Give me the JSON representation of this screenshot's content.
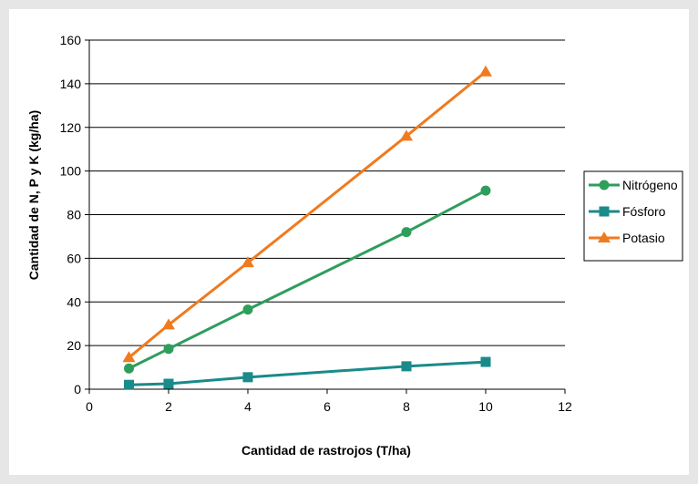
{
  "chart_data": {
    "type": "line",
    "xlabel": "Cantidad de rastrojos (T/ha)",
    "ylabel": "Cantidad de N, P y K (kg/ha)",
    "xlim": [
      0,
      12
    ],
    "ylim": [
      0,
      160
    ],
    "xticks": [
      "0",
      "2",
      "4",
      "6",
      "8",
      "10",
      "12"
    ],
    "yticks": [
      "0",
      "20",
      "40",
      "60",
      "80",
      "100",
      "120",
      "140",
      "160"
    ],
    "grid": "horizontal",
    "legend_position": "right",
    "x": [
      1,
      2,
      4,
      8,
      10
    ],
    "series": [
      {
        "name": "Nitrógeno",
        "values": [
          9.5,
          18.5,
          36.5,
          72,
          91
        ],
        "color": "#2e9e5b",
        "marker": "circle"
      },
      {
        "name": "Fósforo",
        "values": [
          2,
          2.5,
          5.5,
          10.5,
          12.5
        ],
        "color": "#1a8a8a",
        "marker": "square"
      },
      {
        "name": "Potasio",
        "values": [
          14.5,
          29.5,
          58,
          116,
          145.5
        ],
        "color": "#f07a1e",
        "marker": "triangle"
      }
    ]
  }
}
